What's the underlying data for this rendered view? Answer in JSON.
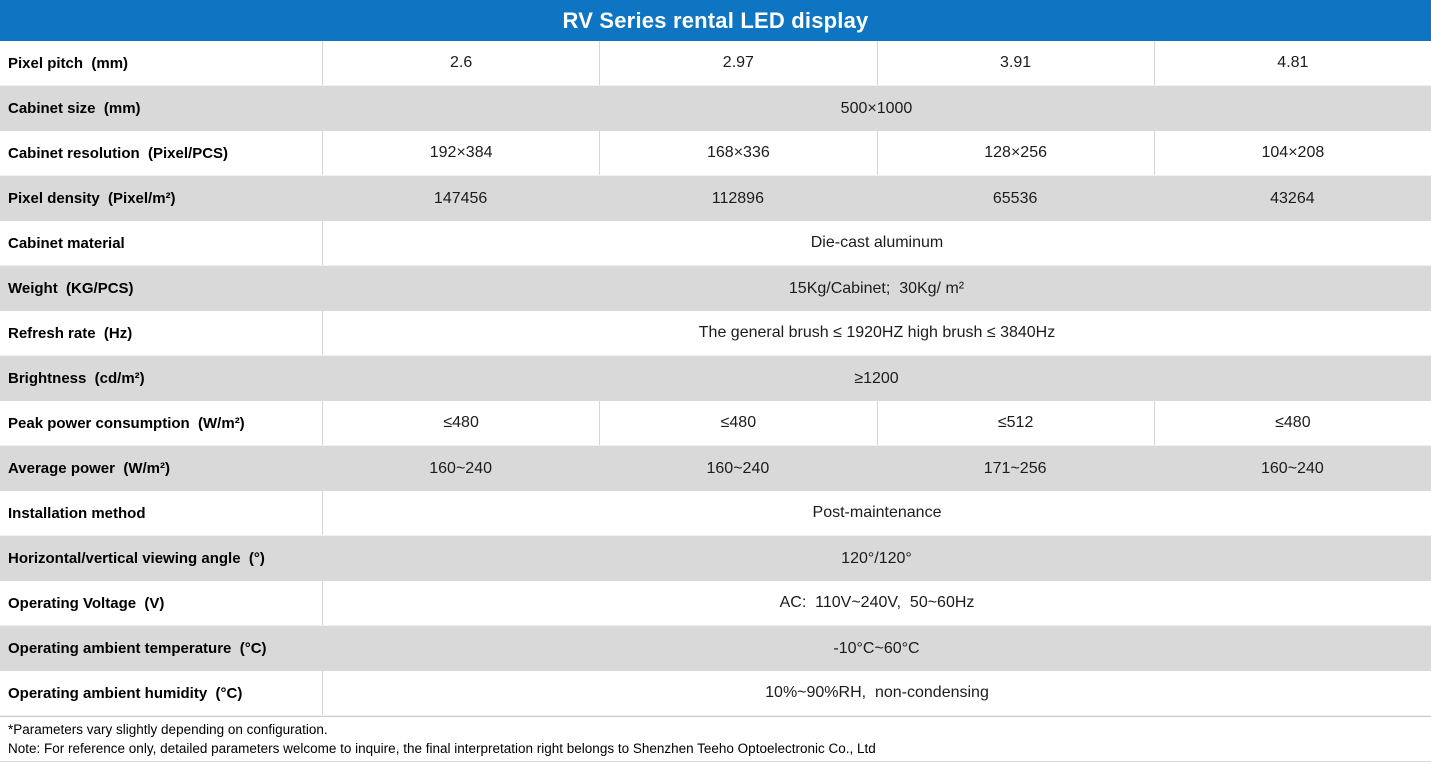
{
  "title": "RV Series rental LED display",
  "colors": {
    "header_bg": "#0d75c2",
    "header_text": "#ffffff",
    "alt_row_bg": "#d9d9d9",
    "grid_line": "#d6d6d6"
  },
  "rows": [
    {
      "label": "Pixel pitch  (mm)",
      "values": [
        "2.6",
        "2.97",
        "3.91",
        "4.81"
      ]
    },
    {
      "label": "Cabinet size  (mm)",
      "merged": "500×1000"
    },
    {
      "label": "Cabinet resolution  (Pixel/PCS)",
      "values": [
        "192×384",
        "168×336",
        "128×256",
        "104×208"
      ]
    },
    {
      "label": "Pixel density  (Pixel/m²)",
      "values": [
        "147456",
        "112896",
        "65536",
        "43264"
      ]
    },
    {
      "label": "Cabinet material",
      "merged": "Die-cast aluminum"
    },
    {
      "label": "Weight  (KG/PCS)",
      "merged": "15Kg/Cabinet;  30Kg/ m²"
    },
    {
      "label": "Refresh rate  (Hz)",
      "merged": "The general brush ≤ 1920HZ high brush ≤ 3840Hz"
    },
    {
      "label": "Brightness  (cd/m²)",
      "merged": "≥1200"
    },
    {
      "label": "Peak power consumption  (W/m²)",
      "values": [
        "≤480",
        "≤480",
        "≤512",
        "≤480"
      ]
    },
    {
      "label": "Average power  (W/m²)",
      "values": [
        "160~240",
        "160~240",
        "171~256",
        "160~240"
      ]
    },
    {
      "label": "Installation method",
      "merged": "Post-maintenance"
    },
    {
      "label": "Horizontal/vertical viewing angle  (°)",
      "merged": "120°/120°"
    },
    {
      "label": "Operating Voltage  (V)",
      "merged": "AC:  110V~240V,  50~60Hz"
    },
    {
      "label": "Operating ambient temperature  (°C)",
      "merged": "-10°C~60°C"
    },
    {
      "label": "Operating ambient humidity  (°C)",
      "merged": "10%~90%RH,  non-condensing"
    }
  ],
  "footnotes": [
    "*Parameters vary slightly depending on configuration.",
    "Note: For reference only, detailed parameters welcome to inquire, the final interpretation right belongs to Shenzhen Teeho Optoelectronic Co., Ltd"
  ]
}
